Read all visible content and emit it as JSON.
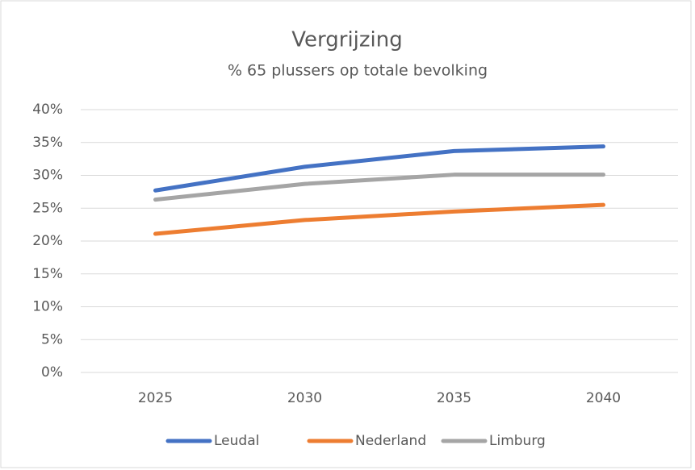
{
  "chart_data": {
    "type": "line",
    "title": "Vergrijzing",
    "subtitle": "% 65 plussers op totale bevolking",
    "categories": [
      "2025",
      "2030",
      "2035",
      "2040"
    ],
    "series": [
      {
        "name": "Leudal",
        "color": "#4472c4",
        "values": [
          27.7,
          31.3,
          33.7,
          34.4
        ]
      },
      {
        "name": "Nederland",
        "color": "#ed7d31",
        "values": [
          21.1,
          23.2,
          24.5,
          25.5
        ]
      },
      {
        "name": "Limburg",
        "color": "#a5a5a5",
        "values": [
          26.3,
          28.7,
          30.1,
          30.1
        ]
      }
    ],
    "ylim": [
      0,
      40
    ],
    "yticks": [
      {
        "value": 0,
        "label": "0%"
      },
      {
        "value": 5,
        "label": "5%"
      },
      {
        "value": 10,
        "label": "10%"
      },
      {
        "value": 15,
        "label": "15%"
      },
      {
        "value": 20,
        "label": "20%"
      },
      {
        "value": 25,
        "label": "25%"
      },
      {
        "value": 30,
        "label": "30%"
      },
      {
        "value": 35,
        "label": "35%"
      },
      {
        "value": 40,
        "label": "40%"
      }
    ],
    "grid": true,
    "legend": "bottom"
  }
}
